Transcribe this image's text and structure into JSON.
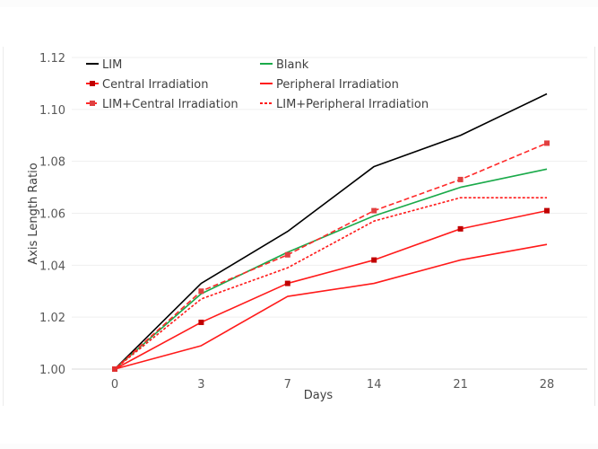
{
  "chart_data": {
    "type": "line",
    "title": "",
    "xlabel": "Days",
    "ylabel": "Axis Length Ratio",
    "categories": [
      "0",
      "3",
      "7",
      "14",
      "21",
      "28"
    ],
    "ylim": [
      1.0,
      1.12
    ],
    "yticks": [
      "1.00",
      "1.02",
      "1.04",
      "1.06",
      "1.08",
      "1.10",
      "1.12"
    ],
    "ytick_values": [
      1.0,
      1.02,
      1.04,
      1.06,
      1.08,
      1.1,
      1.12
    ],
    "grid": true,
    "legend_position": "top",
    "series": [
      {
        "name": "LIM",
        "color": "#000000",
        "dash": false,
        "marker": "none",
        "values": [
          1.0,
          1.033,
          1.053,
          1.078,
          1.09,
          1.106
        ]
      },
      {
        "name": "Blank",
        "color": "#1aaa4a",
        "dash": false,
        "marker": "none",
        "values": [
          1.0,
          1.029,
          1.045,
          1.059,
          1.07,
          1.077
        ]
      },
      {
        "name": "Central Irradiation",
        "color": "#ff1a1a",
        "marker_color": "#c00000",
        "dash": false,
        "marker": "square",
        "values": [
          1.0,
          1.018,
          1.033,
          1.042,
          1.054,
          1.061
        ]
      },
      {
        "name": "Peripheral Irradiation",
        "color": "#ff1a1a",
        "dash": false,
        "marker": "none",
        "values": [
          1.0,
          1.009,
          1.028,
          1.033,
          1.042,
          1.048
        ]
      },
      {
        "name": "LIM+Central Irradiation",
        "color": "#ff2a2a",
        "marker_color": "#e04040",
        "dash": true,
        "marker": "square",
        "values": [
          1.0,
          1.03,
          1.044,
          1.061,
          1.073,
          1.087
        ]
      },
      {
        "name": "LIM+Peripheral Irradiation",
        "color": "#ff1a1a",
        "dash": "dot",
        "marker": "none",
        "values": [
          1.0,
          1.027,
          1.039,
          1.057,
          1.066,
          1.066
        ]
      }
    ]
  }
}
